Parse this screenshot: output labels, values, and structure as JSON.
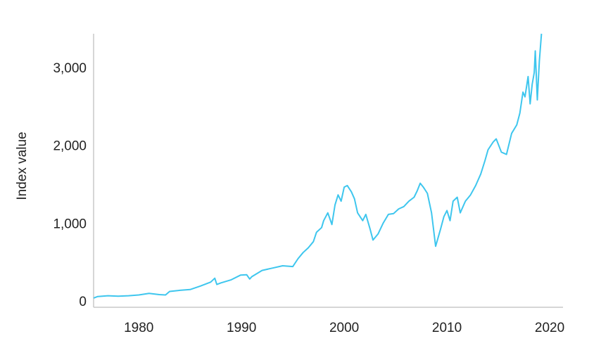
{
  "chart_data": {
    "type": "line",
    "y_label": "Index value",
    "color": "#3ec6ee",
    "x": [
      1975.6,
      1976,
      1977,
      1978,
      1979,
      1980,
      1981,
      1982,
      1982.6,
      1983,
      1984,
      1985,
      1986,
      1987,
      1987.4,
      1987.6,
      1988,
      1989,
      1989.9,
      1990.5,
      1990.8,
      1991,
      1992,
      1993,
      1994,
      1995,
      1995.5,
      1996,
      1996.5,
      1997,
      1997.3,
      1997.8,
      1998,
      1998.4,
      1998.8,
      1999.1,
      1999.4,
      1999.7,
      2000,
      2000.3,
      2000.7,
      2001,
      2001.3,
      2001.8,
      2002.1,
      2002.5,
      2002.8,
      2003.3,
      2003.8,
      2004.3,
      2004.8,
      2005.3,
      2005.8,
      2006.3,
      2006.8,
      2007.1,
      2007.4,
      2007.7,
      2008.1,
      2008.5,
      2008.9,
      2009.4,
      2009.7,
      2010,
      2010.3,
      2010.6,
      2011,
      2011.3,
      2011.8,
      2012.3,
      2012.8,
      2013.3,
      2013.7,
      2014,
      2014.5,
      2014.8,
      2015.3,
      2015.8,
      2016.3,
      2016.8,
      2017.1,
      2017.4,
      2017.6,
      2017.9,
      2018.1,
      2018.3,
      2018.5,
      2018.6,
      2018.8,
      2019.0,
      2019.2
    ],
    "values": [
      55,
      75,
      85,
      80,
      85,
      95,
      115,
      100,
      95,
      140,
      155,
      165,
      210,
      260,
      310,
      230,
      250,
      290,
      350,
      355,
      300,
      330,
      410,
      440,
      470,
      460,
      560,
      640,
      700,
      780,
      900,
      960,
      1050,
      1150,
      1000,
      1250,
      1380,
      1300,
      1480,
      1500,
      1420,
      1330,
      1150,
      1050,
      1130,
      950,
      800,
      880,
      1020,
      1130,
      1140,
      1200,
      1230,
      1300,
      1350,
      1430,
      1530,
      1480,
      1400,
      1150,
      720,
      950,
      1100,
      1180,
      1050,
      1300,
      1350,
      1150,
      1300,
      1380,
      1500,
      1650,
      1820,
      1960,
      2060,
      2100,
      1930,
      1900,
      2170,
      2280,
      2430,
      2700,
      2640,
      2900,
      2550,
      2800,
      2950,
      3230,
      2600,
      3100,
      3450
    ],
    "xlim": [
      1975.6,
      2021.3
    ],
    "ylim": [
      -63,
      3450
    ],
    "xticks": [
      1980,
      1990,
      2000,
      2010,
      2020
    ],
    "yticks": [
      0,
      {
        "value": 1000,
        "label": "1,000"
      },
      {
        "value": 2000,
        "label": "2,000"
      },
      {
        "value": 3000,
        "label": "3,000"
      }
    ]
  }
}
